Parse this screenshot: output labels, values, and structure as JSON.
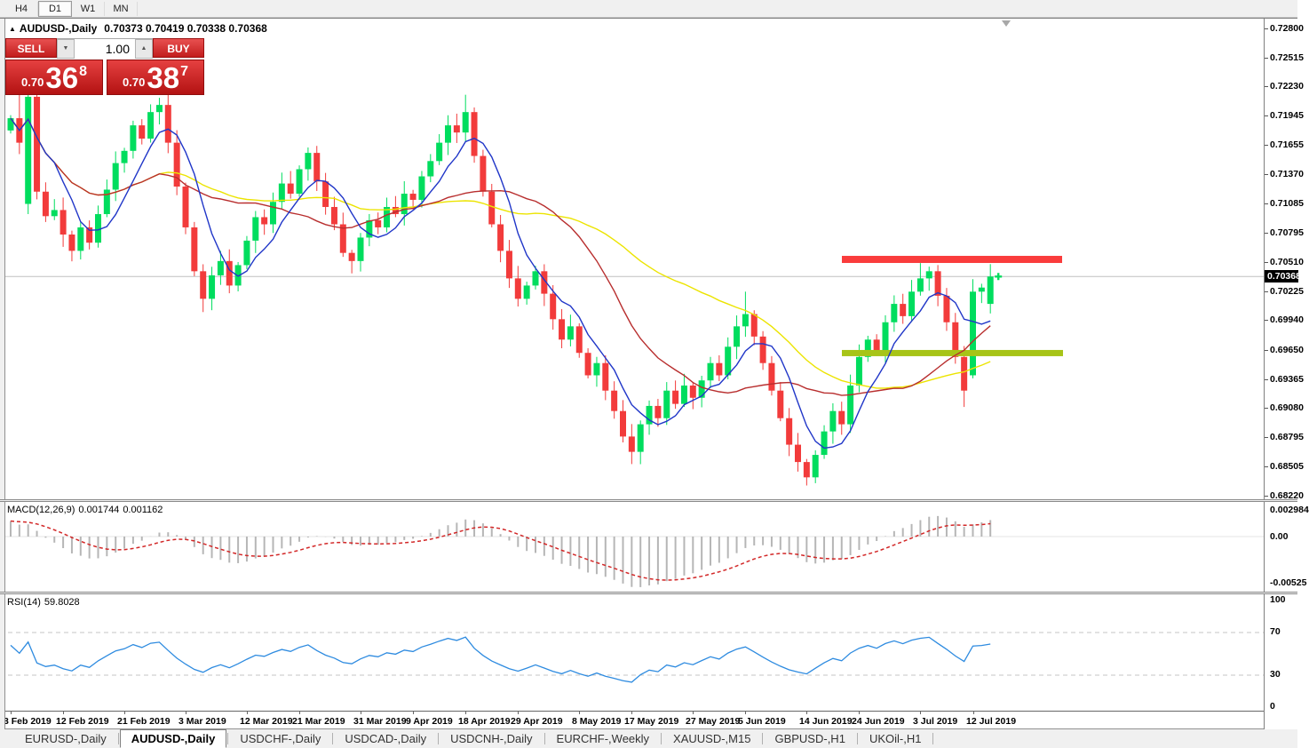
{
  "toolbar": {
    "timeframes": [
      {
        "label": "H4",
        "active": false
      },
      {
        "label": "D1",
        "active": true
      },
      {
        "label": "W1",
        "active": false
      },
      {
        "label": "MN",
        "active": false
      }
    ]
  },
  "chart": {
    "symbol_title": "AUDUSD-,Daily",
    "ohlc_line": "0.70373 0.70419 0.70338 0.70368"
  },
  "icons": {
    "collapse_triangle": "▲",
    "spin_up": "▲",
    "spin_down": "▼"
  },
  "trade_widget": {
    "sell_label": "SELL",
    "buy_label": "BUY",
    "volume": "1.00",
    "sell_price": {
      "prefix": "0.70",
      "big": "36",
      "sup": "8"
    },
    "buy_price": {
      "prefix": "0.70",
      "big": "38",
      "sup": "7"
    }
  },
  "chart_data": {
    "type": "candlestick",
    "symbol": "AUDUSD-,Daily",
    "title_values": {
      "open": "0.70373",
      "high": "0.70419",
      "low": "0.70338",
      "close": "0.70368"
    },
    "current_price": 0.70368,
    "current_price_label": "0.70368",
    "price_ticks": [
      0.728,
      0.72515,
      0.7223,
      0.71945,
      0.71655,
      0.7137,
      0.71085,
      0.70795,
      0.7051,
      0.70225,
      0.6994,
      0.6965,
      0.69365,
      0.6908,
      0.68795,
      0.68505,
      0.6822
    ],
    "colors": {
      "bull": "#00dd5e",
      "bear": "#f23b3b",
      "current_line": "#c0c0c0"
    },
    "closes": [
      0.7192,
      0.7168,
      0.7213,
      0.712,
      0.7096,
      0.7102,
      0.7078,
      0.7062,
      0.7085,
      0.707,
      0.7098,
      0.7122,
      0.7148,
      0.716,
      0.7185,
      0.7172,
      0.7198,
      0.7205,
      0.7168,
      0.7125,
      0.7085,
      0.7042,
      0.7015,
      0.7038,
      0.7052,
      0.7028,
      0.7048,
      0.7072,
      0.7095,
      0.7088,
      0.711,
      0.7128,
      0.7118,
      0.7142,
      0.7158,
      0.713,
      0.7105,
      0.7088,
      0.706,
      0.7052,
      0.7075,
      0.7092,
      0.7085,
      0.7105,
      0.7098,
      0.7118,
      0.7112,
      0.7135,
      0.715,
      0.7168,
      0.7185,
      0.7178,
      0.7198,
      0.7155,
      0.712,
      0.7088,
      0.7062,
      0.7035,
      0.7015,
      0.7028,
      0.7042,
      0.702,
      0.6995,
      0.6975,
      0.6988,
      0.6962,
      0.694,
      0.6952,
      0.6925,
      0.6905,
      0.688,
      0.6865,
      0.6892,
      0.691,
      0.6898,
      0.6925,
      0.6912,
      0.693,
      0.6918,
      0.6935,
      0.6952,
      0.694,
      0.6968,
      0.6988,
      0.7,
      0.6978,
      0.6952,
      0.6925,
      0.6898,
      0.6872,
      0.6855,
      0.684,
      0.6862,
      0.6885,
      0.6905,
      0.6892,
      0.693,
      0.6958,
      0.6975,
      0.6962,
      0.6992,
      0.701,
      0.6998,
      0.7022,
      0.7035,
      0.7042,
      0.7018,
      0.6992,
      0.6958,
      0.6925,
      0.7022,
      0.7026,
      0.70368
    ],
    "wick_overrides": [
      {
        "i": 1,
        "h": 0.7228
      },
      {
        "i": 2,
        "o": 0.7108,
        "l": 0.7098,
        "h": 0.7218
      },
      {
        "i": 17,
        "h": 0.7212
      },
      {
        "i": 22,
        "l": 0.7002
      },
      {
        "i": 52,
        "h": 0.7215
      },
      {
        "i": 71,
        "l": 0.6853
      },
      {
        "i": 84,
        "h": 0.7022
      },
      {
        "i": 91,
        "l": 0.6832
      },
      {
        "i": 104,
        "h": 0.705
      },
      {
        "i": 109,
        "l": 0.6909
      },
      {
        "i": 110,
        "o": 0.694
      },
      {
        "i": 112,
        "o": 0.701,
        "h": 0.7049
      }
    ],
    "moving_averages": [
      {
        "name": "slow-ma",
        "period": 38,
        "color": "#ece400"
      },
      {
        "name": "mid-ma",
        "period": 18,
        "color": "#b82e2e"
      },
      {
        "name": "fast-ma",
        "period": 6,
        "color": "#2036c8"
      }
    ],
    "levels": {
      "resistance": {
        "price": 0.70536,
        "x1": 948,
        "x2": 1196,
        "color": "#fa3c3c"
      },
      "support": {
        "price": 0.69618,
        "x1": 948,
        "x2": 1197,
        "color": "#a7c417"
      }
    },
    "x_ticks": [
      {
        "label": "3 Feb 2019",
        "bar": 0
      },
      {
        "label": "12 Feb 2019",
        "bar": 6
      },
      {
        "label": "21 Feb 2019",
        "bar": 13
      },
      {
        "label": "3 Mar 2019",
        "bar": 20
      },
      {
        "label": "12 Mar 2019",
        "bar": 27
      },
      {
        "label": "21 Mar 2019",
        "bar": 33
      },
      {
        "label": "31 Mar 2019",
        "bar": 40
      },
      {
        "label": "9 Apr 2019",
        "bar": 46
      },
      {
        "label": "18 Apr 2019",
        "bar": 52
      },
      {
        "label": "29 Apr 2019",
        "bar": 58
      },
      {
        "label": "8 May 2019",
        "bar": 65
      },
      {
        "label": "17 May 2019",
        "bar": 71
      },
      {
        "label": "27 May 2019",
        "bar": 78
      },
      {
        "label": "5 Jun 2019",
        "bar": 84
      },
      {
        "label": "14 Jun 2019",
        "bar": 91
      },
      {
        "label": "24 Jun 2019",
        "bar": 97
      },
      {
        "label": "3 Jul 2019",
        "bar": 104
      },
      {
        "label": "12 Jul 2019",
        "bar": 110
      }
    ],
    "macd": {
      "name": "MACD(12,26,9)",
      "value_main": "0.001744",
      "value_signal": "0.001162",
      "axis": [
        {
          "label": "0.002984",
          "v": 0.002984
        },
        {
          "label": "0.00",
          "v": 0
        },
        {
          "label": "-0.00525",
          "v": -0.00525
        }
      ],
      "histogram_color": "#b6b6b6",
      "signal_color": "#d22727"
    },
    "rsi": {
      "name": "RSI(14)",
      "value": "59.8028",
      "axis": [
        100,
        70,
        30,
        0
      ],
      "levels": [
        70,
        30
      ],
      "line_color": "#2e8be0"
    }
  },
  "bottom_tabs": [
    {
      "label": "EURUSD-,Daily",
      "active": false
    },
    {
      "label": "AUDUSD-,Daily",
      "active": true
    },
    {
      "label": "USDCHF-,Daily",
      "active": false
    },
    {
      "label": "USDCAD-,Daily",
      "active": false
    },
    {
      "label": "USDCNH-,Daily",
      "active": false
    },
    {
      "label": "EURCHF-,Weekly",
      "active": false
    },
    {
      "label": "XAUUSD-,M15",
      "active": false
    },
    {
      "label": "GBPUSD-,H1",
      "active": false
    },
    {
      "label": "UKOil-,H1",
      "active": false
    }
  ]
}
